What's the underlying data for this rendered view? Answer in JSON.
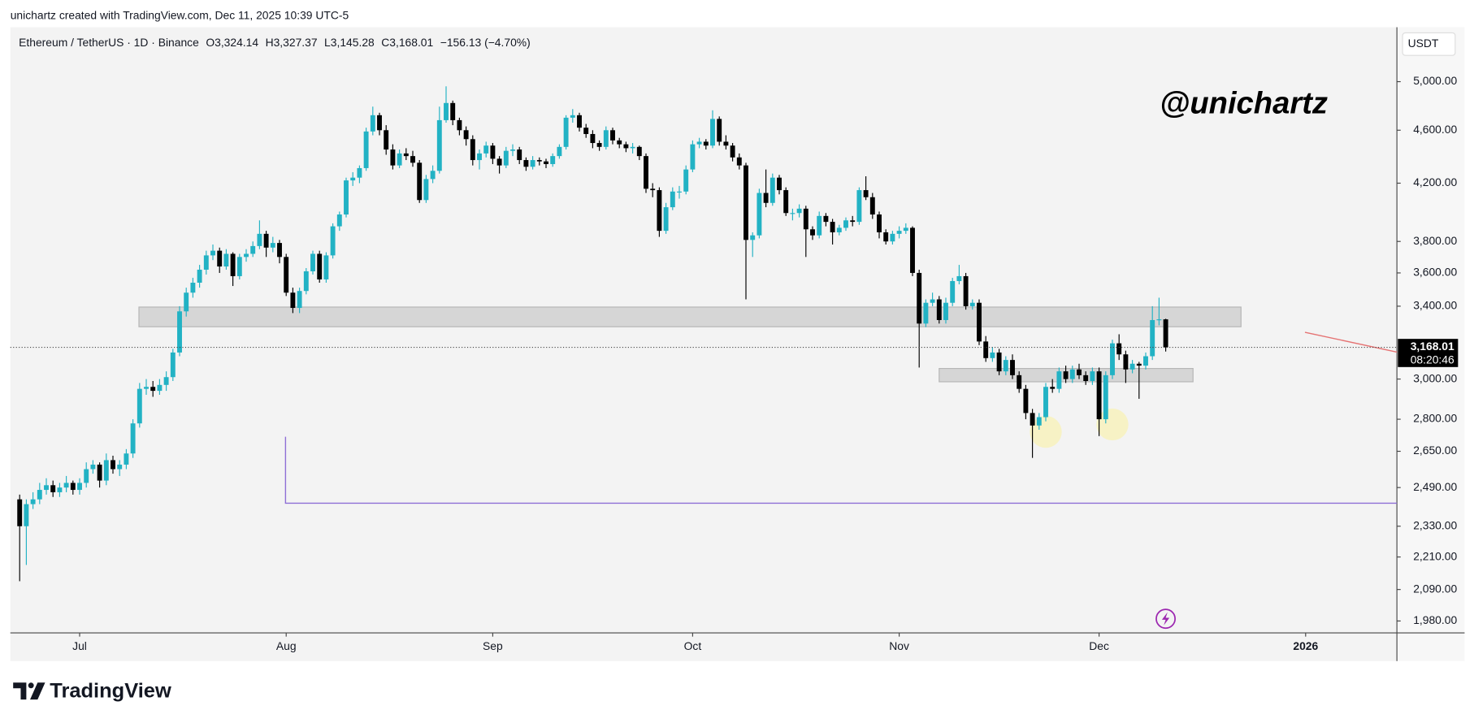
{
  "header": {
    "attribution": "unichartz created with TradingView.com, Dec 11, 2025 10:39 UTC-5"
  },
  "chart_data": {
    "type": "candlestick",
    "title": "Ethereum / TetherUS · 1D · Binance",
    "ohlc_text": [
      "O3,324.14",
      "H3,327.37",
      "L3,145.28",
      "C3,168.01",
      "−156.13 (−4.70%)"
    ],
    "currency": "USDT",
    "watermark": "@unichartz",
    "up_color": "#22b2c4",
    "down_color": "#000000",
    "log_scale": true,
    "ylim": [
      1940,
      5490
    ],
    "yticks": [
      {
        "value": 5000,
        "label": "5,000.00"
      },
      {
        "value": 4600,
        "label": "4,600.00"
      },
      {
        "value": 4200,
        "label": "4,200.00"
      },
      {
        "value": 3800,
        "label": "3,800.00"
      },
      {
        "value": 3600,
        "label": "3,600.00"
      },
      {
        "value": 3400,
        "label": "3,400.00"
      },
      {
        "value": 3000,
        "label": "3,000.00"
      },
      {
        "value": 2800,
        "label": "2,800.00"
      },
      {
        "value": 2650,
        "label": "2,650.00"
      },
      {
        "value": 2490,
        "label": "2,490.00"
      },
      {
        "value": 2330,
        "label": "2,330.00"
      },
      {
        "value": 2210,
        "label": "2,210.00"
      },
      {
        "value": 2090,
        "label": "2,090.00"
      },
      {
        "value": 1980,
        "label": "1,980.00"
      }
    ],
    "xlim": [
      -1.4,
      206.7
    ],
    "xticks": [
      {
        "value": 9,
        "label": "Jul"
      },
      {
        "value": 40,
        "label": "Aug"
      },
      {
        "value": 71,
        "label": "Sep"
      },
      {
        "value": 101,
        "label": "Oct"
      },
      {
        "value": 132,
        "label": "Nov"
      },
      {
        "value": 162,
        "label": "Dec"
      },
      {
        "value": 193,
        "label": "2026"
      }
    ],
    "last_price_label": {
      "value": 3168.01,
      "label": "3,168.01"
    },
    "countdown": "08:20:46",
    "zones": [
      {
        "x": [
          17.9,
          183.3
        ],
        "y": [
          3282,
          3395
        ]
      },
      {
        "x": [
          138,
          176.1
        ],
        "y": [
          2986,
          3055
        ]
      }
    ],
    "circles": [
      {
        "x": 154,
        "y": 2740
      },
      {
        "x": 164,
        "y": 2775
      }
    ],
    "purple_line": {
      "x": 39.9,
      "y": [
        2717,
        2424
      ]
    },
    "red_line": {
      "x": [
        192.9,
        206.7
      ],
      "y": [
        3251,
        3142
      ]
    },
    "ohlc": [
      [
        2440,
        2460,
        2120,
        2330
      ],
      [
        2330,
        2440,
        2180,
        2420
      ],
      [
        2420,
        2470,
        2400,
        2440
      ],
      [
        2440,
        2510,
        2420,
        2480
      ],
      [
        2480,
        2530,
        2460,
        2500
      ],
      [
        2500,
        2520,
        2450,
        2470
      ],
      [
        2470,
        2510,
        2450,
        2490
      ],
      [
        2490,
        2540,
        2470,
        2510
      ],
      [
        2510,
        2520,
        2460,
        2480
      ],
      [
        2480,
        2530,
        2460,
        2510
      ],
      [
        2510,
        2600,
        2490,
        2570
      ],
      [
        2570,
        2610,
        2550,
        2590
      ],
      [
        2590,
        2600,
        2490,
        2520
      ],
      [
        2520,
        2640,
        2500,
        2610
      ],
      [
        2610,
        2630,
        2550,
        2570
      ],
      [
        2570,
        2610,
        2540,
        2590
      ],
      [
        2590,
        2660,
        2570,
        2640
      ],
      [
        2640,
        2800,
        2620,
        2780
      ],
      [
        2780,
        2980,
        2760,
        2950
      ],
      [
        2950,
        3000,
        2920,
        2960
      ],
      [
        2960,
        2990,
        2910,
        2940
      ],
      [
        2940,
        3000,
        2920,
        2970
      ],
      [
        2970,
        3040,
        2940,
        3010
      ],
      [
        3010,
        3160,
        2990,
        3140
      ],
      [
        3140,
        3400,
        3120,
        3370
      ],
      [
        3370,
        3510,
        3340,
        3480
      ],
      [
        3480,
        3570,
        3450,
        3540
      ],
      [
        3540,
        3650,
        3510,
        3620
      ],
      [
        3620,
        3740,
        3590,
        3710
      ],
      [
        3710,
        3780,
        3680,
        3740
      ],
      [
        3740,
        3760,
        3600,
        3640
      ],
      [
        3640,
        3750,
        3620,
        3720
      ],
      [
        3720,
        3730,
        3520,
        3580
      ],
      [
        3580,
        3720,
        3560,
        3700
      ],
      [
        3700,
        3750,
        3670,
        3720
      ],
      [
        3720,
        3800,
        3700,
        3770
      ],
      [
        3770,
        3940,
        3750,
        3850
      ],
      [
        3850,
        3870,
        3700,
        3760
      ],
      [
        3760,
        3830,
        3730,
        3790
      ],
      [
        3790,
        3810,
        3660,
        3700
      ],
      [
        3700,
        3720,
        3460,
        3480
      ],
      [
        3480,
        3510,
        3360,
        3390
      ],
      [
        3390,
        3510,
        3360,
        3490
      ],
      [
        3490,
        3630,
        3470,
        3610
      ],
      [
        3610,
        3740,
        3590,
        3720
      ],
      [
        3720,
        3740,
        3540,
        3560
      ],
      [
        3560,
        3730,
        3540,
        3710
      ],
      [
        3710,
        3920,
        3690,
        3900
      ],
      [
        3900,
        4000,
        3870,
        3980
      ],
      [
        3980,
        4240,
        3960,
        4220
      ],
      [
        4220,
        4280,
        4180,
        4240
      ],
      [
        4240,
        4330,
        4200,
        4310
      ],
      [
        4310,
        4620,
        4290,
        4590
      ],
      [
        4590,
        4790,
        4560,
        4720
      ],
      [
        4720,
        4740,
        4560,
        4600
      ],
      [
        4600,
        4640,
        4410,
        4450
      ],
      [
        4450,
        4490,
        4300,
        4330
      ],
      [
        4330,
        4450,
        4310,
        4420
      ],
      [
        4420,
        4460,
        4370,
        4400
      ],
      [
        4400,
        4440,
        4320,
        4350
      ],
      [
        4350,
        4370,
        4060,
        4080
      ],
      [
        4080,
        4260,
        4060,
        4230
      ],
      [
        4230,
        4330,
        4200,
        4290
      ],
      [
        4290,
        4790,
        4270,
        4680
      ],
      [
        4680,
        4960,
        4660,
        4820
      ],
      [
        4820,
        4840,
        4640,
        4680
      ],
      [
        4680,
        4700,
        4560,
        4600
      ],
      [
        4600,
        4630,
        4480,
        4530
      ],
      [
        4530,
        4560,
        4330,
        4370
      ],
      [
        4370,
        4450,
        4300,
        4420
      ],
      [
        4420,
        4510,
        4390,
        4480
      ],
      [
        4480,
        4500,
        4340,
        4380
      ],
      [
        4380,
        4400,
        4270,
        4330
      ],
      [
        4330,
        4470,
        4310,
        4440
      ],
      [
        4440,
        4490,
        4400,
        4450
      ],
      [
        4450,
        4470,
        4340,
        4370
      ],
      [
        4370,
        4390,
        4290,
        4320
      ],
      [
        4320,
        4400,
        4300,
        4370
      ],
      [
        4370,
        4390,
        4330,
        4360
      ],
      [
        4360,
        4380,
        4310,
        4340
      ],
      [
        4340,
        4420,
        4320,
        4400
      ],
      [
        4400,
        4490,
        4380,
        4470
      ],
      [
        4470,
        4720,
        4450,
        4700
      ],
      [
        4700,
        4770,
        4660,
        4720
      ],
      [
        4720,
        4740,
        4590,
        4620
      ],
      [
        4620,
        4650,
        4540,
        4570
      ],
      [
        4570,
        4600,
        4460,
        4500
      ],
      [
        4500,
        4520,
        4440,
        4470
      ],
      [
        4470,
        4630,
        4450,
        4600
      ],
      [
        4600,
        4620,
        4490,
        4520
      ],
      [
        4520,
        4540,
        4460,
        4490
      ],
      [
        4490,
        4510,
        4430,
        4460
      ],
      [
        4460,
        4500,
        4420,
        4470
      ],
      [
        4470,
        4480,
        4370,
        4400
      ],
      [
        4400,
        4420,
        4130,
        4160
      ],
      [
        4160,
        4200,
        4100,
        4150
      ],
      [
        4150,
        4170,
        3830,
        3870
      ],
      [
        3870,
        4060,
        3850,
        4030
      ],
      [
        4030,
        4170,
        4010,
        4140
      ],
      [
        4140,
        4180,
        4090,
        4140
      ],
      [
        4140,
        4330,
        4120,
        4300
      ],
      [
        4300,
        4520,
        4280,
        4490
      ],
      [
        4490,
        4540,
        4460,
        4510
      ],
      [
        4510,
        4530,
        4450,
        4480
      ],
      [
        4480,
        4760,
        4460,
        4690
      ],
      [
        4690,
        4710,
        4480,
        4510
      ],
      [
        4510,
        4560,
        4450,
        4480
      ],
      [
        4480,
        4500,
        4360,
        4390
      ],
      [
        4390,
        4420,
        4300,
        4330
      ],
      [
        4330,
        4350,
        3440,
        3810
      ],
      [
        3810,
        3860,
        3700,
        3840
      ],
      [
        3840,
        4160,
        3820,
        4130
      ],
      [
        4130,
        4300,
        4030,
        4060
      ],
      [
        4060,
        4270,
        4040,
        4240
      ],
      [
        4240,
        4260,
        4120,
        4150
      ],
      [
        4150,
        4170,
        3970,
        3990
      ],
      [
        3990,
        4020,
        3940,
        3990
      ],
      [
        3990,
        4050,
        3960,
        4020
      ],
      [
        4020,
        4040,
        3700,
        3880
      ],
      [
        3880,
        3900,
        3810,
        3840
      ],
      [
        3840,
        4000,
        3820,
        3970
      ],
      [
        3970,
        3990,
        3900,
        3930
      ],
      [
        3930,
        3950,
        3780,
        3860
      ],
      [
        3860,
        3910,
        3840,
        3890
      ],
      [
        3890,
        3960,
        3870,
        3940
      ],
      [
        3940,
        3970,
        3900,
        3930
      ],
      [
        3930,
        4170,
        3910,
        4150
      ],
      [
        4150,
        4250,
        4080,
        4100
      ],
      [
        4100,
        4130,
        3950,
        3980
      ],
      [
        3980,
        4000,
        3820,
        3860
      ],
      [
        3860,
        3880,
        3780,
        3800
      ],
      [
        3800,
        3870,
        3780,
        3850
      ],
      [
        3850,
        3900,
        3820,
        3870
      ],
      [
        3870,
        3920,
        3850,
        3890
      ],
      [
        3890,
        3900,
        3580,
        3600
      ],
      [
        3600,
        3620,
        3060,
        3300
      ],
      [
        3300,
        3440,
        3280,
        3420
      ],
      [
        3420,
        3480,
        3400,
        3440
      ],
      [
        3440,
        3460,
        3300,
        3320
      ],
      [
        3320,
        3450,
        3300,
        3420
      ],
      [
        3420,
        3570,
        3400,
        3550
      ],
      [
        3550,
        3650,
        3530,
        3580
      ],
      [
        3580,
        3600,
        3380,
        3400
      ],
      [
        3400,
        3440,
        3380,
        3420
      ],
      [
        3420,
        3440,
        3180,
        3200
      ],
      [
        3200,
        3230,
        3090,
        3110
      ],
      [
        3110,
        3170,
        3090,
        3140
      ],
      [
        3140,
        3160,
        3020,
        3040
      ],
      [
        3040,
        3120,
        3020,
        3100
      ],
      [
        3100,
        3130,
        3000,
        3020
      ],
      [
        3020,
        3040,
        2930,
        2950
      ],
      [
        2950,
        2970,
        2800,
        2830
      ],
      [
        2830,
        2850,
        2620,
        2770
      ],
      [
        2770,
        2830,
        2750,
        2810
      ],
      [
        2810,
        2980,
        2790,
        2960
      ],
      [
        2960,
        3000,
        2930,
        2950
      ],
      [
        2950,
        3060,
        2930,
        3040
      ],
      [
        3040,
        3070,
        2980,
        3000
      ],
      [
        3000,
        3070,
        2980,
        3050
      ],
      [
        3050,
        3080,
        3000,
        3020
      ],
      [
        3020,
        3040,
        2970,
        2990
      ],
      [
        2990,
        3060,
        2970,
        3040
      ],
      [
        3040,
        3060,
        2720,
        2800
      ],
      [
        2800,
        3040,
        2780,
        3020
      ],
      [
        3020,
        3210,
        3000,
        3190
      ],
      [
        3190,
        3240,
        3100,
        3130
      ],
      [
        3130,
        3150,
        2980,
        3050
      ],
      [
        3050,
        3100,
        3030,
        3080
      ],
      [
        3080,
        3090,
        2900,
        3070
      ],
      [
        3070,
        3140,
        3050,
        3120
      ],
      [
        3120,
        3400,
        3100,
        3320
      ],
      [
        3320,
        3450,
        3290,
        3324.14
      ],
      [
        3324.14,
        3327.37,
        3145.28,
        3168.01
      ]
    ]
  },
  "footer": {
    "logo": "TradingView"
  }
}
